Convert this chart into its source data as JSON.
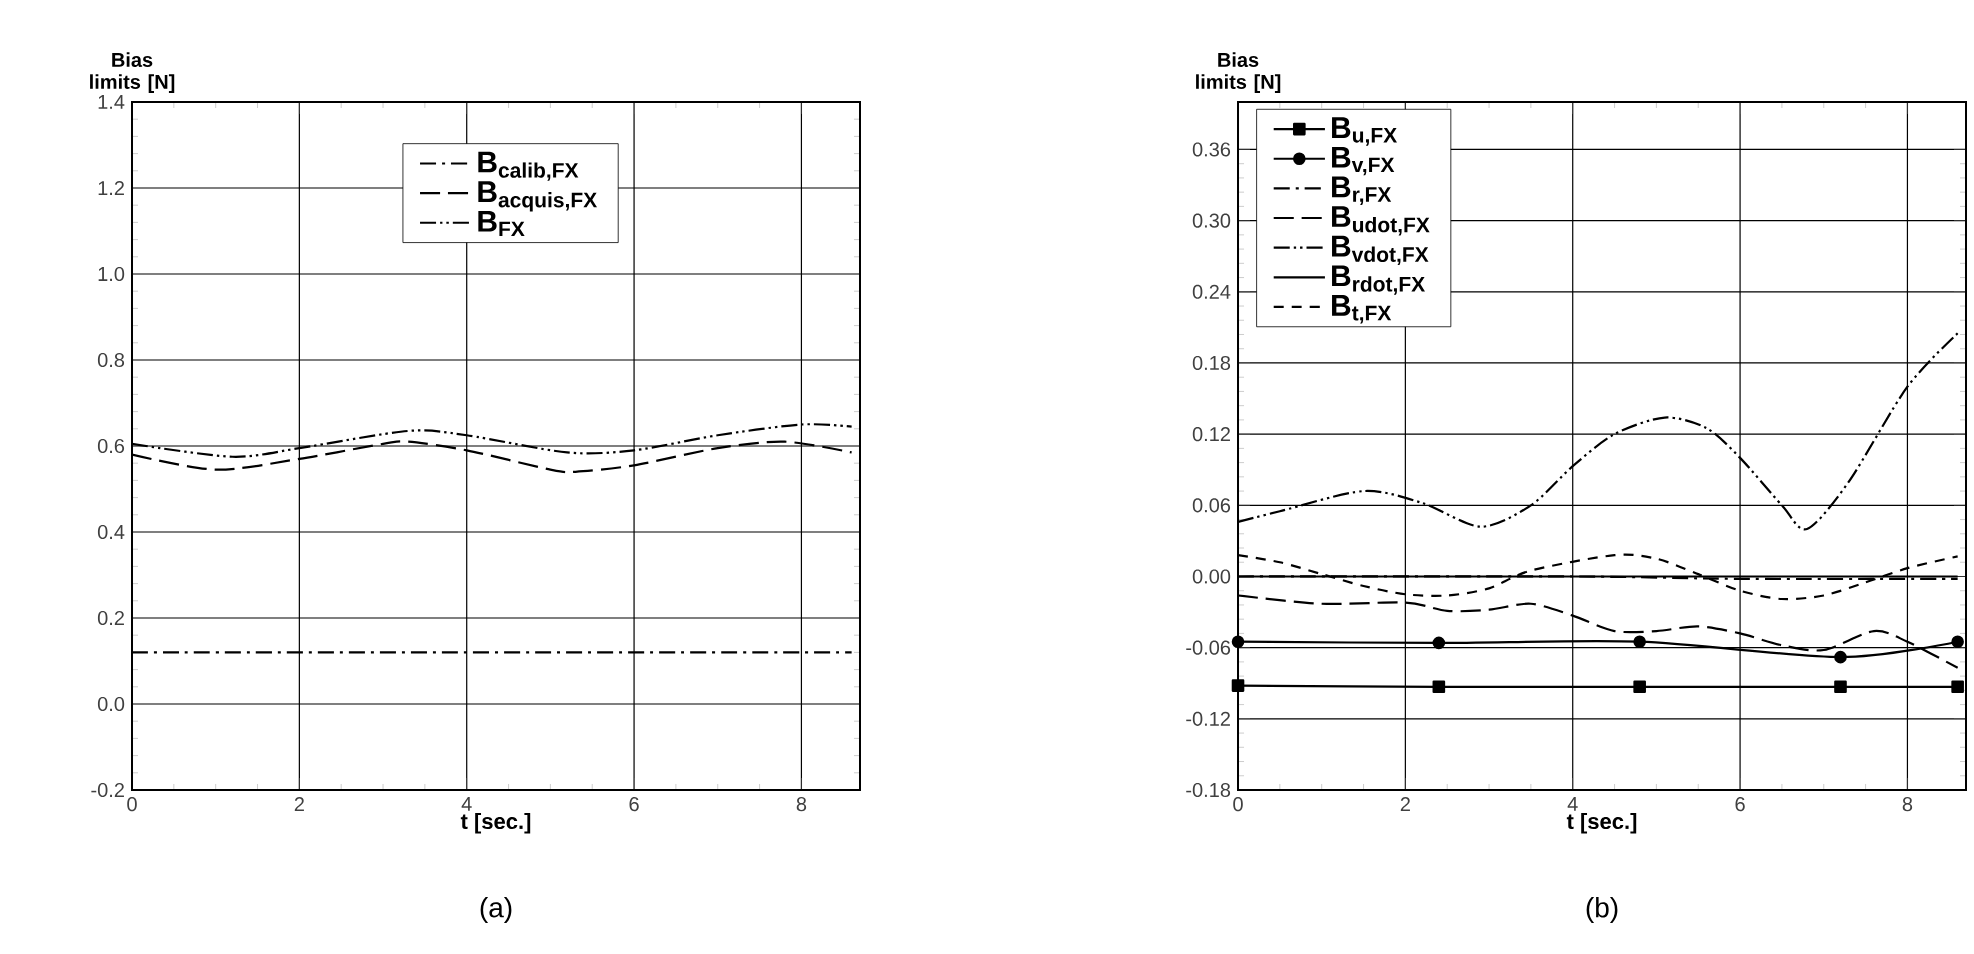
{
  "chart_data": [
    {
      "type": "line",
      "xlabel": "t [sec.]",
      "ylabel": "Bias limits [N]",
      "annotations": [
        "(a)"
      ],
      "xlim": [
        0,
        8.7
      ],
      "ylim": [
        -0.2,
        1.4
      ],
      "xticks": [
        0,
        2,
        4,
        6,
        8
      ],
      "yticks": [
        {
          "value": -0.2,
          "label": "-0.2"
        },
        {
          "value": 0,
          "label": "0.0"
        },
        {
          "value": 0.2,
          "label": "0.2"
        },
        {
          "value": 0.4,
          "label": "0.4"
        },
        {
          "value": 0.6,
          "label": "0.6"
        },
        {
          "value": 0.8,
          "label": "0.8"
        },
        {
          "value": 1.0,
          "label": "1.0"
        },
        {
          "value": 1.2,
          "label": "1.2"
        },
        {
          "value": 1.4,
          "label": "1.4"
        }
      ],
      "grid": true,
      "legend": "top",
      "series": [
        {
          "name": "B$_{calib,FX}$",
          "color": "#000000",
          "line_style": "dashdot",
          "x": [
            0,
            8.6
          ],
          "values": [
            0.12,
            0.12
          ]
        },
        {
          "name": "B$_{acquis,FX}$",
          "color": "#000000",
          "line_style": "long dashed",
          "x": [
            0,
            1,
            2,
            3,
            3.3,
            4,
            5,
            5.3,
            6,
            7,
            7.8,
            8.6
          ],
          "values": [
            0.58,
            0.545,
            0.57,
            0.605,
            0.61,
            0.59,
            0.545,
            0.54,
            0.555,
            0.595,
            0.61,
            0.585
          ]
        },
        {
          "name": "B$_{FX}$",
          "color": "#000000",
          "line_style": "dashdotdot",
          "x": [
            0,
            1.2,
            2,
            3.3,
            4,
            5.2,
            6,
            7,
            8,
            8.6
          ],
          "values": [
            0.605,
            0.575,
            0.595,
            0.635,
            0.625,
            0.585,
            0.59,
            0.625,
            0.65,
            0.645
          ]
        }
      ]
    },
    {
      "type": "line",
      "xlabel": "t [sec.]",
      "ylabel": "Bias limits [N]",
      "annotations": [
        "(b)"
      ],
      "xlim": [
        0,
        8.7
      ],
      "ylim": [
        -0.18,
        0.4
      ],
      "xticks": [
        0,
        2,
        4,
        6,
        8
      ],
      "yticks": [
        {
          "value": -0.18,
          "label": "-0.18"
        },
        {
          "value": -0.12,
          "label": "-0.12"
        },
        {
          "value": -0.06,
          "label": "-0.06"
        },
        {
          "value": 0,
          "label": "0.00"
        },
        {
          "value": 0.06,
          "label": "0.06"
        },
        {
          "value": 0.12,
          "label": "0.12"
        },
        {
          "value": 0.18,
          "label": "0.18"
        },
        {
          "value": 0.24,
          "label": "0.24"
        },
        {
          "value": 0.3,
          "label": "0.30"
        },
        {
          "value": 0.36,
          "label": "0.36"
        }
      ],
      "grid": true,
      "legend": "top left",
      "series": [
        {
          "name": "B$_{u,FX}$",
          "color": "#000000",
          "line_style": "solid",
          "marker": "square",
          "x": [
            0,
            2.4,
            4.8,
            7.2,
            8.6
          ],
          "values": [
            -0.092,
            -0.093,
            -0.093,
            -0.093,
            -0.093
          ]
        },
        {
          "name": "B$_{v,FX}$",
          "color": "#000000",
          "line_style": "solid",
          "marker": "circle",
          "x": [
            0,
            2.4,
            4.8,
            7.2,
            8.6
          ],
          "values": [
            -0.055,
            -0.056,
            -0.055,
            -0.068,
            -0.055
          ]
        },
        {
          "name": "B$_{r,FX}$",
          "color": "#000000",
          "line_style": "dashdot",
          "x": [
            0,
            4,
            6,
            8.6
          ],
          "values": [
            0,
            0,
            -0.002,
            -0.002
          ]
        },
        {
          "name": "B$_{udot,FX}$",
          "color": "#000000",
          "line_style": "long dashed",
          "x": [
            0,
            1,
            2,
            2.5,
            3,
            3.5,
            4,
            4.5,
            5,
            5.5,
            6,
            6.5,
            7,
            7.6,
            8,
            8.6
          ],
          "values": [
            -0.016,
            -0.023,
            -0.022,
            -0.029,
            -0.028,
            -0.023,
            -0.033,
            -0.046,
            -0.046,
            -0.042,
            -0.048,
            -0.058,
            -0.062,
            -0.046,
            -0.055,
            -0.077
          ]
        },
        {
          "name": "B$_{vdot,FX}$",
          "color": "#000000",
          "line_style": "dashdotdot",
          "x": [
            0,
            0.5,
            1.5,
            2.2,
            2.9,
            3.5,
            4,
            4.5,
            5.1,
            5.6,
            6,
            6.5,
            6.8,
            7.3,
            8,
            8.6
          ],
          "values": [
            0.046,
            0.055,
            0.072,
            0.062,
            0.042,
            0.06,
            0.093,
            0.12,
            0.134,
            0.125,
            0.1,
            0.06,
            0.04,
            0.08,
            0.16,
            0.205
          ]
        },
        {
          "name": "B$_{rdot,FX}$",
          "color": "#000000",
          "line_style": "solid",
          "x": [
            0,
            8.6
          ],
          "values": [
            0,
            0
          ]
        },
        {
          "name": "B$_{t,FX}$",
          "color": "#000000",
          "line_style": "dashed",
          "x": [
            0,
            0.5,
            1,
            1.5,
            2,
            2.5,
            3,
            3.5,
            4.5,
            5,
            5.5,
            6,
            6.5,
            7,
            7.5,
            8,
            8.6
          ],
          "values": [
            0.018,
            0.012,
            0.002,
            -0.008,
            -0.015,
            -0.016,
            -0.01,
            0.005,
            0.018,
            0.015,
            0.002,
            -0.012,
            -0.019,
            -0.016,
            -0.005,
            0.007,
            0.017
          ]
        }
      ]
    }
  ]
}
